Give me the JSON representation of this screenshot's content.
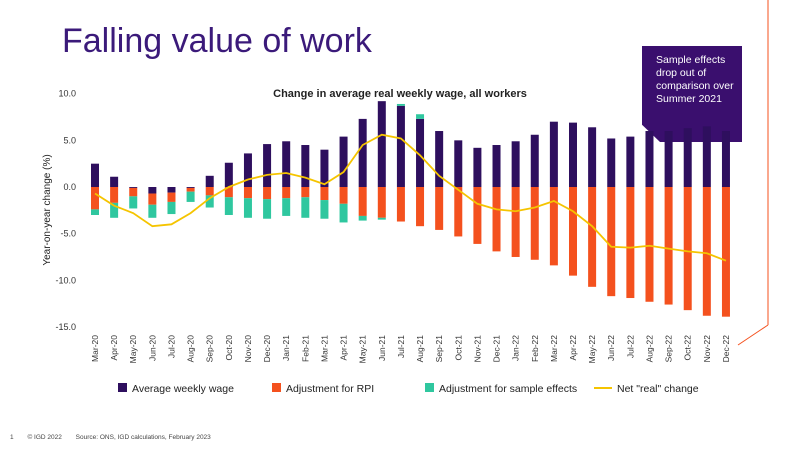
{
  "slide": {
    "title": "Falling value of work",
    "callout": "Sample effects drop out of comparison over Summer 2021",
    "footer": {
      "page_number": "1",
      "copyright": "© IGD 2022",
      "source": "Source: ONS, IGD calculations, February 2023"
    }
  },
  "colors": {
    "wage": "#2e0f5e",
    "rpi": "#f4511e",
    "sample": "#2fc79f",
    "net": "#f5c400",
    "title": "#3b1a7a",
    "accent": "#f4511e"
  },
  "chart_data": {
    "type": "bar",
    "title": "Change in average real weekly wage, all workers",
    "xlabel": "",
    "ylabel": "Year-on-year change (%)",
    "ylim": [
      -15,
      10
    ],
    "yticks": [
      "10.0",
      "5.0",
      "0.0",
      "-5.0",
      "-10.0",
      "-15.0"
    ],
    "ytick_values": [
      10,
      5,
      0,
      -5,
      -10,
      -15
    ],
    "grid": false,
    "legend_position": "bottom",
    "categories": [
      "Mar-20",
      "Apr-20",
      "May-20",
      "Jun-20",
      "Jul-20",
      "Aug-20",
      "Sep-20",
      "Oct-20",
      "Nov-20",
      "Dec-20",
      "Jan-21",
      "Feb-21",
      "Mar-21",
      "Apr-21",
      "May-21",
      "Jun-21",
      "Jul-21",
      "Aug-21",
      "Sep-21",
      "Oct-21",
      "Nov-21",
      "Dec-21",
      "Jan-22",
      "Feb-22",
      "Mar-22",
      "Apr-22",
      "May-22",
      "Jun-22",
      "Jul-22",
      "Aug-22",
      "Sep-22",
      "Oct-22",
      "Nov-22",
      "Dec-22"
    ],
    "series": [
      {
        "name": "Average weekly wage",
        "kind": "bar",
        "values": [
          2.5,
          1.1,
          -0.1,
          -0.7,
          -0.6,
          -0.1,
          1.2,
          2.6,
          3.6,
          4.6,
          4.9,
          4.5,
          4.0,
          5.4,
          7.3,
          9.2,
          8.7,
          7.3,
          6.0,
          5.0,
          4.2,
          4.5,
          4.9,
          5.6,
          7.0,
          6.9,
          6.4,
          5.2,
          5.4,
          6.0,
          6.0,
          6.3,
          6.5,
          6.0
        ]
      },
      {
        "name": "Adjustment for RPI",
        "kind": "bar",
        "values": [
          -2.4,
          -1.7,
          -0.9,
          -1.2,
          -1.0,
          -0.4,
          -0.9,
          -1.1,
          -1.2,
          -1.3,
          -1.2,
          -1.1,
          -1.4,
          -1.8,
          -3.1,
          -3.3,
          -3.7,
          -4.2,
          -4.6,
          -5.3,
          -6.1,
          -6.9,
          -7.5,
          -7.8,
          -8.4,
          -9.5,
          -10.7,
          -11.7,
          -11.9,
          -12.3,
          -12.6,
          -13.2,
          -13.8,
          -13.9
        ]
      },
      {
        "name": "Adjustment for sample effects",
        "kind": "bar",
        "values": [
          -0.6,
          -1.6,
          -1.3,
          -1.4,
          -1.3,
          -1.1,
          -1.3,
          -1.9,
          -2.1,
          -2.1,
          -1.9,
          -2.2,
          -2.0,
          -2.0,
          -0.5,
          -0.2,
          0.2,
          0.5,
          0,
          0,
          0,
          0,
          0,
          0,
          0,
          0,
          0,
          0,
          0,
          0,
          0,
          0,
          0,
          0
        ]
      },
      {
        "name": "Net \"real\" change",
        "kind": "line",
        "values": [
          -0.7,
          -2.0,
          -2.8,
          -4.2,
          -4.0,
          -2.8,
          -1.2,
          0.0,
          0.8,
          1.3,
          1.5,
          1.0,
          0.3,
          1.6,
          4.5,
          5.6,
          5.2,
          3.4,
          1.2,
          -0.3,
          -1.8,
          -2.4,
          -2.6,
          -2.2,
          -1.5,
          -2.6,
          -4.2,
          -6.4,
          -6.5,
          -6.3,
          -6.6,
          -6.9,
          -7.1,
          -7.9
        ]
      }
    ]
  }
}
